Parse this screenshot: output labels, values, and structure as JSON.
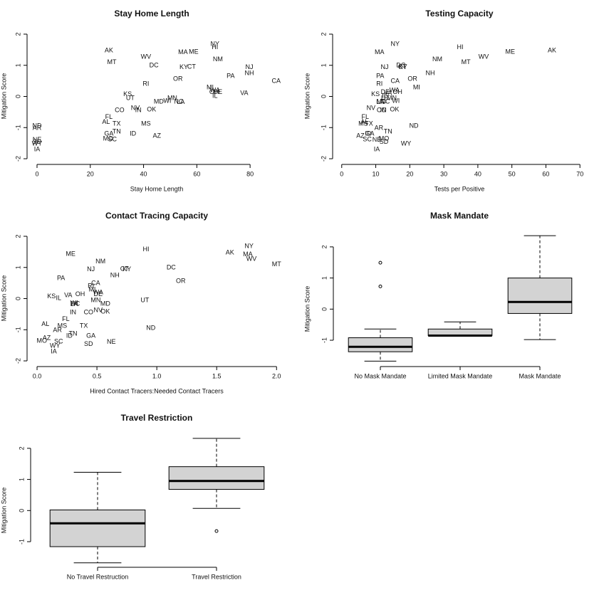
{
  "chart_data": [
    {
      "type": "scatter",
      "title": "Stay Home Length",
      "xlabel": "Stay Home Length",
      "ylabel": "Mitigation Score",
      "labels": [
        "NY",
        "HI",
        "MA",
        "ME",
        "AK",
        "NM",
        "WV",
        "MT",
        "DC",
        "KY",
        "CT",
        "NJ",
        "NH",
        "PA",
        "CA",
        "OR",
        "RI",
        "MI",
        "WA",
        "OH",
        "DE",
        "IL",
        "VA",
        "KS",
        "UT",
        "MN",
        "MD",
        "WI",
        "NC",
        "LA",
        "NV",
        "IN",
        "OK",
        "CO",
        "FL",
        "AL",
        "TX",
        "MS",
        "GA",
        "TN",
        "ID",
        "AZ",
        "MO",
        "SC",
        "ND",
        "AR",
        "NE",
        "SD",
        "WY",
        "IA"
      ],
      "x": [
        66.8,
        66.8,
        54.8,
        58.8,
        27,
        67.9,
        40.9,
        28.1,
        43.9,
        55.1,
        58,
        79.7,
        79.7,
        72.7,
        89.8,
        52.9,
        40.9,
        65,
        66.8,
        66.5,
        67.9,
        66.8,
        77.8,
        34,
        35,
        50.8,
        45.7,
        48.9,
        53.2,
        54,
        36.9,
        38,
        43,
        31,
        27,
        25.9,
        29.9,
        40.9,
        27,
        29.9,
        36,
        45,
        26.7,
        28.3,
        0,
        0,
        0,
        0,
        0,
        0
      ],
      "y": [
        1.68,
        1.57,
        1.41,
        1.43,
        1.47,
        1.18,
        1.27,
        1.09,
        0.99,
        0.93,
        0.95,
        0.93,
        0.74,
        0.65,
        0.49,
        0.56,
        0.4,
        0.28,
        0.19,
        0.13,
        0.13,
        0.01,
        0.1,
        0.06,
        -0.06,
        -0.06,
        -0.17,
        -0.15,
        -0.17,
        -0.19,
        -0.38,
        -0.45,
        -0.42,
        -0.45,
        -0.67,
        -0.83,
        -0.88,
        -0.88,
        -1.2,
        -1.13,
        -1.2,
        -1.27,
        -1.36,
        -1.38,
        -0.95,
        -1.02,
        -1.4,
        -1.47,
        -1.52,
        -1.7
      ],
      "xlim": [
        -2,
        92
      ],
      "ylim": [
        -2.1,
        2.1
      ],
      "xticks": [
        0,
        20,
        40,
        60,
        80
      ],
      "yticks": [
        -2,
        -1,
        0,
        1,
        2
      ]
    },
    {
      "type": "scatter",
      "title": "Testing Capacity",
      "xlabel": "Tests per Positive",
      "ylabel": "Mitigation Score",
      "labels": [
        "NY",
        "HI",
        "MA",
        "ME",
        "AK",
        "NM",
        "WV",
        "MT",
        "DC",
        "KY",
        "CT",
        "NJ",
        "NH",
        "PA",
        "CA",
        "OR",
        "RI",
        "MI",
        "WA",
        "OH",
        "DE",
        "IL",
        "VA",
        "KS",
        "UT",
        "MN",
        "MD",
        "WI",
        "NC",
        "LA",
        "NV",
        "IN",
        "OK",
        "CO",
        "FL",
        "AL",
        "TX",
        "MS",
        "GA",
        "TN",
        "ID",
        "AZ",
        "MO",
        "SC",
        "ND",
        "AR",
        "NE",
        "SD",
        "WY",
        "IA"
      ],
      "x": [
        15.7,
        34.8,
        11.1,
        49.5,
        61.8,
        28.1,
        41.7,
        36.5,
        17.4,
        18,
        17.8,
        12.6,
        26,
        11.3,
        15.7,
        20.8,
        11.1,
        22,
        15.5,
        16.4,
        12.8,
        12.6,
        13.6,
        9.9,
        12.8,
        14.7,
        11.7,
        15.9,
        12.8,
        11.3,
        8.6,
        12.2,
        15.5,
        11.7,
        6.9,
        6.7,
        8,
        6.3,
        8.2,
        13.6,
        7.8,
        5.5,
        12.4,
        7.5,
        21.2,
        10.9,
        10.3,
        12.4,
        18.9,
        10.3
      ],
      "y": [
        1.68,
        1.57,
        1.41,
        1.43,
        1.47,
        1.18,
        1.27,
        1.09,
        0.99,
        0.93,
        0.95,
        0.93,
        0.74,
        0.65,
        0.49,
        0.56,
        0.4,
        0.28,
        0.19,
        0.13,
        0.13,
        0.01,
        0.1,
        0.06,
        -0.06,
        -0.06,
        -0.17,
        -0.15,
        -0.17,
        -0.19,
        -0.38,
        -0.45,
        -0.42,
        -0.45,
        -0.67,
        -0.83,
        -0.88,
        -0.88,
        -1.2,
        -1.13,
        -1.2,
        -1.27,
        -1.36,
        -1.38,
        -0.95,
        -1.02,
        -1.4,
        -1.47,
        -1.52,
        -1.7
      ],
      "xlim": [
        -1,
        71
      ],
      "ylim": [
        -2.1,
        2.1
      ],
      "xticks": [
        0,
        10,
        20,
        30,
        40,
        50,
        60,
        70
      ],
      "yticks": [
        -2,
        -1,
        0,
        1,
        2
      ]
    },
    {
      "type": "scatter",
      "title": "Contact Tracing Capacity",
      "xlabel": "Hired Contact Tracers:Needed Contact Tracers",
      "ylabel": "Mitigation Score",
      "labels": [
        "NY",
        "HI",
        "MA",
        "ME",
        "AK",
        "NM",
        "WV",
        "MT",
        "DC",
        "KY",
        "CT",
        "NJ",
        "NH",
        "PA",
        "CA",
        "OR",
        "RI",
        "MI",
        "WA",
        "OH",
        "DE",
        "IL",
        "VA",
        "KS",
        "UT",
        "MN",
        "MD",
        "WI",
        "NC",
        "LA",
        "NV",
        "IN",
        "OK",
        "CO",
        "FL",
        "AL",
        "TX",
        "MS",
        "GA",
        "TN",
        "ID",
        "AZ",
        "MO",
        "SC",
        "ND",
        "AR",
        "NE",
        "SD",
        "WY",
        "IA"
      ],
      "x": [
        1.77,
        0.91,
        1.76,
        0.28,
        1.61,
        0.53,
        1.79,
        2.0,
        1.12,
        0.75,
        0.73,
        0.45,
        0.65,
        0.2,
        0.49,
        1.2,
        0.45,
        0.46,
        0.51,
        0.36,
        0.51,
        0.18,
        0.26,
        0.12,
        0.9,
        0.49,
        0.57,
        0.31,
        0.32,
        0.31,
        0.51,
        0.3,
        0.57,
        0.43,
        0.24,
        0.07,
        0.39,
        0.21,
        0.45,
        0.3,
        0.27,
        0.08,
        0.04,
        0.18,
        0.95,
        0.17,
        0.62,
        0.43,
        0.15,
        0.14
      ],
      "y": [
        1.68,
        1.57,
        1.41,
        1.43,
        1.47,
        1.18,
        1.27,
        1.09,
        0.99,
        0.93,
        0.95,
        0.93,
        0.74,
        0.65,
        0.49,
        0.56,
        0.4,
        0.28,
        0.19,
        0.13,
        0.13,
        0.01,
        0.1,
        0.06,
        -0.06,
        -0.06,
        -0.17,
        -0.15,
        -0.17,
        -0.19,
        -0.38,
        -0.45,
        -0.42,
        -0.45,
        -0.67,
        -0.83,
        -0.88,
        -0.88,
        -1.2,
        -1.13,
        -1.2,
        -1.27,
        -1.36,
        -1.38,
        -0.95,
        -1.02,
        -1.4,
        -1.47,
        -1.52,
        -1.7
      ],
      "xlim": [
        -0.04,
        2.04
      ],
      "ylim": [
        -2.1,
        2.1
      ],
      "xticks": [
        {
          "value": 0,
          "label": "0.0"
        },
        0.5,
        {
          "value": 1,
          "label": "1.0"
        },
        1.5,
        {
          "value": 2,
          "label": "2.0"
        }
      ],
      "yticks": [
        -2,
        -1,
        0,
        1,
        2
      ]
    },
    {
      "type": "boxplot",
      "title": "Mask Mandate",
      "ylabel": "Mitigation Score",
      "color": "#d3d3d3",
      "categories": [
        "No Mask Mandate",
        "Limited Mask Mandate",
        "Mask Mandate"
      ],
      "boxes": [
        {
          "whislo": -1.67,
          "q1": -1.37,
          "med": -1.21,
          "q3": -0.92,
          "whishi": -0.64,
          "fliers": [
            1.49,
            0.73
          ]
        },
        {
          "whislo": -0.85,
          "q1": -0.85,
          "med": -0.85,
          "q3": -0.64,
          "whishi": -0.41,
          "fliers": []
        },
        {
          "whislo": -0.98,
          "q1": -0.14,
          "med": 0.23,
          "q3": 1.0,
          "whishi": 2.36,
          "fliers": []
        }
      ],
      "ylim": [
        -1.8,
        2.5
      ],
      "yticks": [
        -1,
        0,
        1,
        2
      ]
    },
    {
      "type": "boxplot",
      "title": "Travel Restriction",
      "ylabel": "Mitigation Score",
      "color": "#d3d3d3",
      "categories": [
        "No Travel Restruction",
        "Travel Restriction"
      ],
      "boxes": [
        {
          "whislo": -1.68,
          "q1": -1.16,
          "med": -0.41,
          "q3": 0.02,
          "whishi": 1.23,
          "fliers": []
        },
        {
          "whislo": 0.07,
          "q1": 0.68,
          "med": 0.95,
          "q3": 1.41,
          "whishi": 2.32,
          "fliers": [
            -0.66
          ]
        }
      ],
      "ylim": [
        -1.8,
        2.5
      ],
      "yticks": [
        -1,
        0,
        1,
        2
      ]
    }
  ]
}
